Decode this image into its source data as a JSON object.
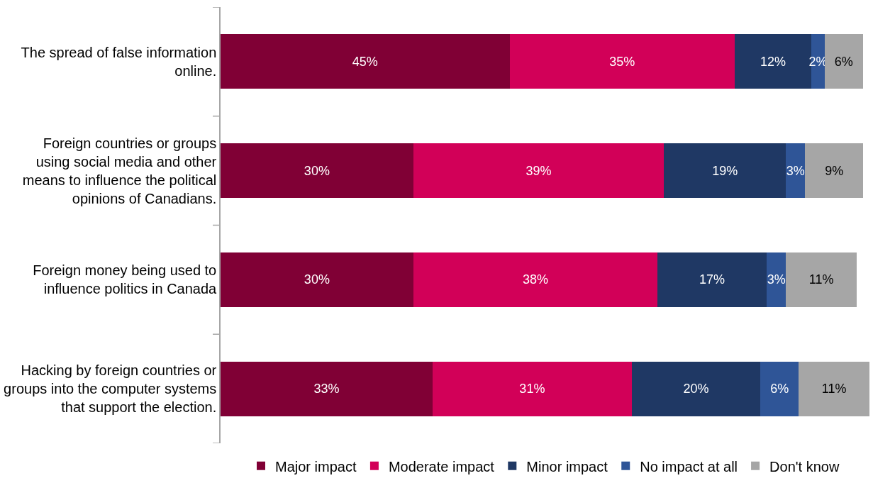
{
  "chart_data": {
    "type": "bar",
    "orientation": "horizontal",
    "stacked": true,
    "legend": "bottom",
    "tick_labels": "y",
    "categories": [
      "The spread of false information online.",
      "Foreign countries or groups using social media and other means to influence the political opinions of Canadians.",
      "Foreign money being used to influence politics in Canada",
      "Hacking by foreign countries or groups into the computer systems that support the election."
    ],
    "series": [
      {
        "name": "Major impact",
        "color": "#800035",
        "values": [
          45,
          30,
          30,
          33
        ],
        "value_labels": [
          "45%",
          "30%",
          "30%",
          "33%"
        ]
      },
      {
        "name": "Moderate impact",
        "color": "#d20058",
        "values": [
          35,
          39,
          38,
          31
        ],
        "value_labels": [
          "35%",
          "39%",
          "38%",
          "31%"
        ]
      },
      {
        "name": "Minor impact",
        "color": "#1f3864",
        "values": [
          12,
          19,
          17,
          20
        ],
        "value_labels": [
          "12%",
          "19%",
          "17%",
          "20%"
        ]
      },
      {
        "name": "No impact at all",
        "color": "#2f5597",
        "values": [
          2,
          3,
          3,
          6
        ],
        "value_labels": [
          "2%",
          "3%",
          "3%",
          "6%"
        ]
      },
      {
        "name": "Don't know",
        "color": "#a6a6a6",
        "values": [
          6,
          9,
          11,
          11
        ],
        "value_labels": [
          "6%",
          "9%",
          "11%",
          "11%"
        ]
      }
    ]
  }
}
